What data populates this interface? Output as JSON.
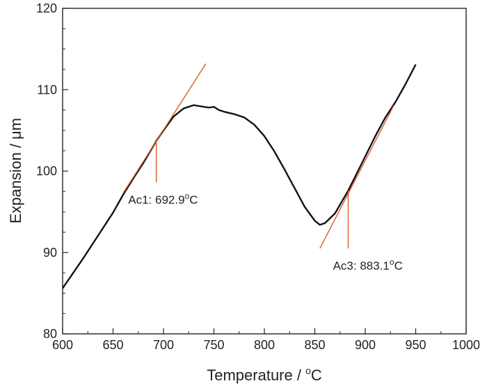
{
  "chart_data": {
    "type": "line",
    "xlabel": "Temperature / ",
    "xlabel_unit_sup": "o",
    "xlabel_unit": "C",
    "ylabel": "Expansion / μm",
    "xlim": [
      600,
      1000
    ],
    "ylim": [
      80,
      120
    ],
    "x_ticks": [
      600,
      650,
      700,
      750,
      800,
      850,
      900,
      950,
      1000
    ],
    "y_ticks": [
      80,
      90,
      100,
      110,
      120
    ],
    "grid": false,
    "series": [
      {
        "color": "#111111",
        "points": [
          [
            600,
            85.6
          ],
          [
            610,
            87.4
          ],
          [
            620,
            89.2
          ],
          [
            630,
            91.1
          ],
          [
            640,
            93.0
          ],
          [
            650,
            94.9
          ],
          [
            660,
            97.1
          ],
          [
            670,
            99.1
          ],
          [
            680,
            101.0
          ],
          [
            692.9,
            103.7
          ],
          [
            700,
            105.0
          ],
          [
            710,
            106.7
          ],
          [
            720,
            107.7
          ],
          [
            730,
            108.1
          ],
          [
            740,
            107.9
          ],
          [
            745,
            107.8
          ],
          [
            750,
            107.9
          ],
          [
            755,
            107.5
          ],
          [
            760,
            107.3
          ],
          [
            770,
            107.0
          ],
          [
            780,
            106.6
          ],
          [
            790,
            105.7
          ],
          [
            800,
            104.3
          ],
          [
            810,
            102.4
          ],
          [
            820,
            100.2
          ],
          [
            830,
            97.9
          ],
          [
            840,
            95.6
          ],
          [
            850,
            93.9
          ],
          [
            855,
            93.4
          ],
          [
            860,
            93.6
          ],
          [
            870,
            94.8
          ],
          [
            883.1,
            97.6
          ],
          [
            890,
            99.3
          ],
          [
            900,
            101.8
          ],
          [
            910,
            104.3
          ],
          [
            920,
            106.6
          ],
          [
            930,
            108.5
          ],
          [
            940,
            110.7
          ],
          [
            950,
            113.1
          ]
        ]
      }
    ],
    "tangent_lines": [
      {
        "color": "#e05a2b",
        "from": [
          660,
          97.3
        ],
        "to": [
          742,
          113.2
        ]
      },
      {
        "color": "#e05a2b",
        "from": [
          855,
          90.5
        ],
        "to": [
          928,
          108.0
        ]
      }
    ],
    "markers": [
      {
        "x": 692.9,
        "y_top": 103.7,
        "y_bottom": 98.6,
        "color": "#e05a2b",
        "label": "Ac1: 692.9",
        "label_sup": "o",
        "label_unit": "C",
        "label_anchor_x": 665,
        "label_anchor_y": 96.0
      },
      {
        "x": 883.1,
        "y_top": 97.6,
        "y_bottom": 90.5,
        "color": "#e05a2b",
        "label": "Ac3: 883.1",
        "label_sup": "o",
        "label_unit": "C",
        "label_anchor_x": 868,
        "label_anchor_y": 87.9
      }
    ]
  }
}
